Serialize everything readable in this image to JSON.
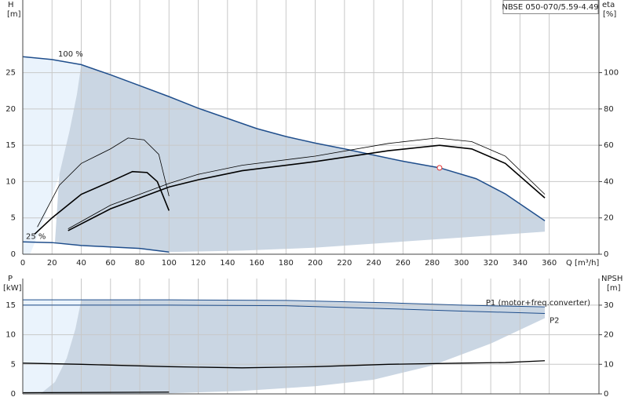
{
  "chart_data": [
    {
      "type": "line",
      "title": "NBSE 050-070/5.59-4.49",
      "y_label": "H",
      "y_unit": "[m]",
      "y2_label": "eta",
      "y2_unit": "[%]",
      "x_label": "Q [m³/h]",
      "xlim": [
        0,
        394
      ],
      "xticks": [
        0,
        20,
        40,
        60,
        80,
        100,
        120,
        140,
        160,
        180,
        200,
        220,
        240,
        260,
        280,
        300,
        320,
        340,
        360
      ],
      "show_xtick_labels": true,
      "ylim": [
        0,
        35
      ],
      "yticks": [
        0,
        5,
        10,
        15,
        20,
        25
      ],
      "y2lim": [
        0,
        140
      ],
      "y2ticks": [
        0,
        20,
        40,
        60,
        80,
        100
      ],
      "grid": true,
      "series": [
        {
          "fill": "#eaf3fc",
          "x": [
            0,
            5,
            15,
            25,
            32,
            37,
            40,
            20,
            0
          ],
          "values": [
            0,
            0,
            5,
            11,
            17,
            22,
            26.1,
            26.8,
            27.2
          ]
        },
        {
          "fill": "#cad6e3",
          "x": [
            40,
            60,
            80,
            100,
            120,
            160,
            180,
            200,
            220,
            260,
            285,
            310,
            330,
            357,
            357,
            300,
            250,
            200,
            150,
            100,
            80,
            60,
            40,
            22,
            25,
            32,
            37
          ],
          "values": [
            26.1,
            24.7,
            23.2,
            21.7,
            20.1,
            17.3,
            16.2,
            15.3,
            14.5,
            12.8,
            11.9,
            10.4,
            8.3,
            4.6,
            3.1,
            2.3,
            1.6,
            0.9,
            0.5,
            0.3,
            0.8,
            1.0,
            1.2,
            1.6,
            11,
            17,
            22
          ]
        },
        {
          "name": "100 %",
          "color": "#1f4e8c",
          "width": 1.5,
          "x": [
            0,
            20,
            40,
            60,
            80,
            100,
            120,
            160,
            180,
            200,
            220,
            260,
            285,
            310,
            330,
            357
          ],
          "values": [
            27.2,
            26.8,
            26.1,
            24.7,
            23.2,
            21.7,
            20.1,
            17.3,
            16.2,
            15.3,
            14.5,
            12.8,
            11.9,
            10.4,
            8.3,
            4.6
          ]
        },
        {
          "name": "25 %",
          "color": "#1f4e8c",
          "width": 1.5,
          "x": [
            0,
            20,
            40,
            60,
            80,
            100
          ],
          "values": [
            1.7,
            1.6,
            1.2,
            1.0,
            0.8,
            0.3
          ]
        },
        {
          "color": "#000000",
          "width": 1.6,
          "axis": "y2",
          "x": [
            31,
            60,
            100,
            120,
            150,
            200,
            250,
            285,
            307,
            330,
            357
          ],
          "values": [
            13,
            25,
            37,
            41,
            46,
            51,
            57,
            60,
            58,
            50,
            31
          ]
        },
        {
          "color": "#000000",
          "width": 0.8,
          "axis": "y2",
          "x": [
            31,
            60,
            100,
            120,
            150,
            200,
            250,
            283,
            307,
            330,
            357
          ],
          "values": [
            14,
            27,
            39,
            44,
            49,
            54,
            61,
            64,
            62,
            54,
            33
          ]
        },
        {
          "color": "#000000",
          "width": 1.6,
          "axis": "y2",
          "x": [
            8,
            20,
            40,
            60,
            75,
            85,
            92,
            100
          ],
          "values": [
            11,
            20,
            33,
            40,
            45.5,
            45,
            40,
            24
          ]
        },
        {
          "color": "#000000",
          "width": 0.8,
          "axis": "y2",
          "x": [
            10,
            25,
            40,
            60,
            72,
            83,
            93,
            100
          ],
          "values": [
            15,
            38,
            50,
            58,
            64,
            63,
            55,
            32
          ]
        },
        {
          "marker": "#e03030",
          "x": [
            285
          ],
          "values": [
            11.9
          ]
        }
      ]
    },
    {
      "type": "line",
      "y_label": "P",
      "y_unit": "[kW]",
      "y2_label": "NPSH",
      "y2_unit": "[m]",
      "xlim": [
        0,
        394
      ],
      "xticks": [
        0,
        20,
        40,
        60,
        80,
        100,
        120,
        140,
        160,
        180,
        200,
        220,
        240,
        260,
        280,
        300,
        320,
        340,
        360
      ],
      "show_xtick_labels": false,
      "ylim": [
        0,
        19.5
      ],
      "yticks": [
        0,
        5,
        10,
        15
      ],
      "y2lim": [
        0,
        39
      ],
      "y2ticks": [
        0,
        10,
        20,
        30
      ],
      "grid": true,
      "series": [
        {
          "fill": "#eaf3fc",
          "x": [
            0,
            12,
            22,
            30,
            36,
            40,
            0
          ],
          "values": [
            0,
            0,
            2,
            6,
            11,
            15.9,
            15.9
          ]
        },
        {
          "fill": "#cad6e3",
          "x": [
            40,
            100,
            180,
            250,
            300,
            357,
            357,
            320,
            280,
            240,
            200,
            150,
            100,
            12,
            22,
            30,
            36
          ],
          "values": [
            15.9,
            15.9,
            15.8,
            15.4,
            15.0,
            14.7,
            12.8,
            8.5,
            4.8,
            2.4,
            1.3,
            0.5,
            0.1,
            0,
            2,
            6,
            11
          ]
        },
        {
          "name": "P1 (motor+freq.converter)",
          "color": "#1f4e8c",
          "width": 1,
          "x": [
            0,
            100,
            180,
            250,
            300,
            357
          ],
          "values": [
            15.9,
            15.9,
            15.8,
            15.4,
            15.0,
            14.7
          ]
        },
        {
          "name": "P2",
          "color": "#1f4e8c",
          "width": 1,
          "x": [
            0,
            100,
            180,
            250,
            300,
            357
          ],
          "values": [
            15.0,
            15.0,
            14.9,
            14.4,
            14.0,
            13.6
          ]
        },
        {
          "color": "#000000",
          "width": 1.3,
          "x": [
            0,
            100
          ],
          "values": [
            0.2,
            0.3
          ]
        },
        {
          "color": "#000000",
          "width": 1.3,
          "axis": "y2",
          "x": [
            0,
            40,
            100,
            150,
            200,
            250,
            300,
            330,
            357
          ],
          "values": [
            10.4,
            10,
            9.2,
            8.8,
            9.2,
            10.0,
            10.4,
            10.6,
            11.2
          ]
        }
      ]
    }
  ]
}
